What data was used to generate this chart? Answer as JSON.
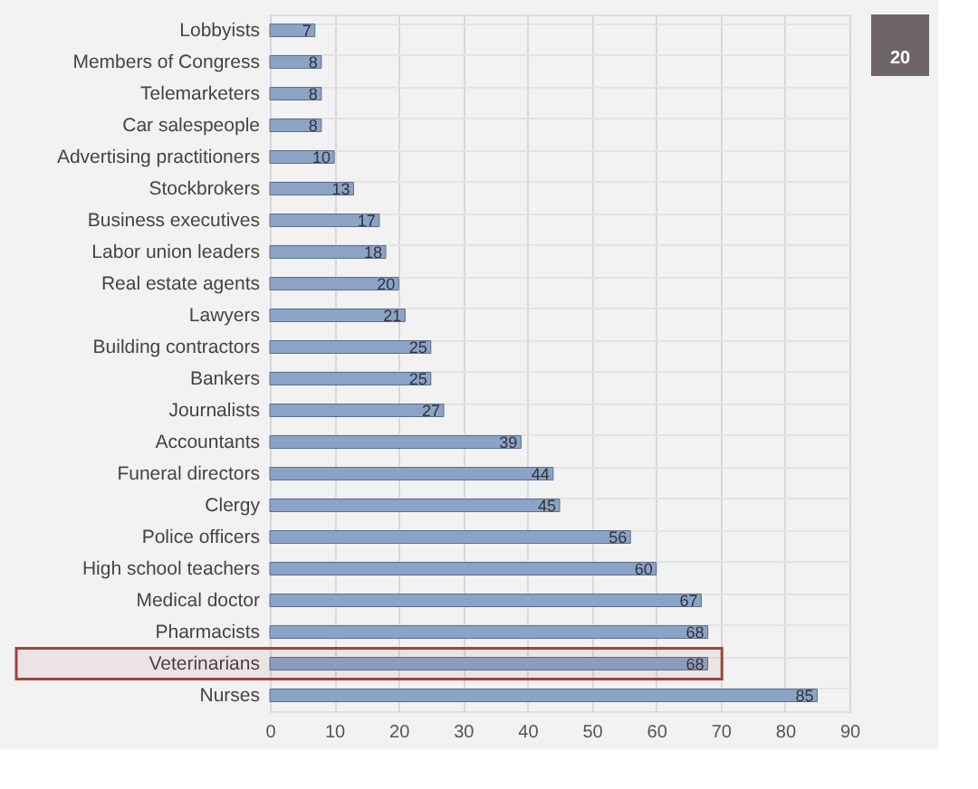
{
  "chart_data": {
    "type": "bar",
    "orientation": "horizontal",
    "categories": [
      "Lobbyists",
      "Members of Congress",
      "Telemarketers",
      "Car salespeople",
      "Advertising practitioners",
      "Stockbrokers",
      "Business executives",
      "Labor union leaders",
      "Real estate agents",
      "Lawyers",
      "Building contractors",
      "Bankers",
      "Journalists",
      "Accountants",
      "Funeral directors",
      "Clergy",
      "Police officers",
      "High school teachers",
      "Medical doctor",
      "Pharmacists",
      "Veterinarians",
      "Nurses"
    ],
    "values": [
      7,
      8,
      8,
      8,
      10,
      13,
      17,
      18,
      20,
      21,
      25,
      25,
      27,
      39,
      44,
      45,
      56,
      60,
      67,
      68,
      68,
      85
    ],
    "color": "#8ba3c7",
    "xlim": [
      0,
      90
    ],
    "xticks": [
      0,
      10,
      20,
      30,
      40,
      50,
      60,
      70,
      80,
      90
    ],
    "grid": true,
    "data_labels": true,
    "bands": [
      {
        "axis": "y",
        "from": "Veterinarians",
        "to": "Veterinarians",
        "color": "#a0433a"
      }
    ],
    "annotations": [
      "20"
    ]
  }
}
